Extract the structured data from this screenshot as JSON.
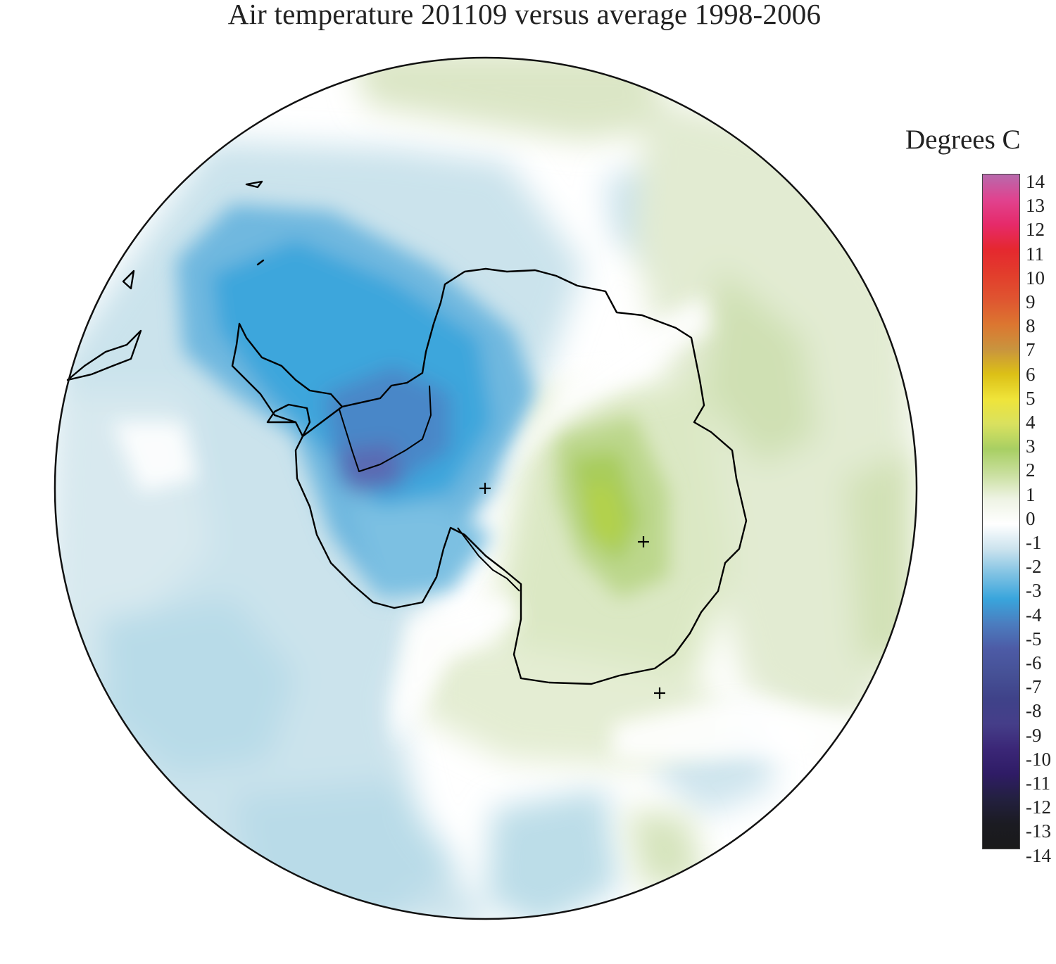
{
  "title": "Air temperature 201109 versus average 1998-2006",
  "legend": {
    "title": "Degrees C",
    "ticks": [
      "14",
      "13",
      "12",
      "11",
      "10",
      "9",
      "8",
      "7",
      "6",
      "5",
      "4",
      "3",
      "2",
      "1",
      "0",
      "-1",
      "-2",
      "-3",
      "-4",
      "-5",
      "-6",
      "-7",
      "-8",
      "-9",
      "-10",
      "-11",
      "-12",
      "-13",
      "-14"
    ],
    "colors": [
      "#b869ac",
      "#e0438f",
      "#e62a6a",
      "#e5282f",
      "#e23d2c",
      "#df5530",
      "#dc7630",
      "#c9943e",
      "#dcc016",
      "#efe43a",
      "#d9e15f",
      "#a8cf63",
      "#c9df9e",
      "#eef3e4",
      "#ffffff",
      "#cce3ee",
      "#7fc2e3",
      "#39a5dc",
      "#4b7dbf",
      "#4d5ba6",
      "#465196",
      "#3f4289",
      "#453e89",
      "#3b2777",
      "#2f1c66",
      "#232040",
      "#1b1b22",
      "#1a1a1a"
    ]
  },
  "map": {
    "projection": "south-polar-stereographic",
    "markers": [
      "+",
      "+",
      "+"
    ]
  }
}
